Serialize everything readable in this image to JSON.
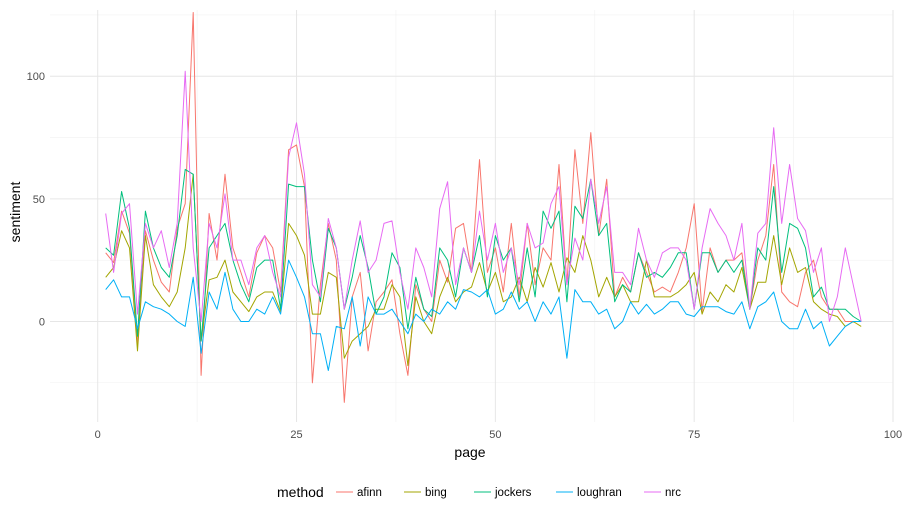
{
  "chart_data": {
    "type": "line",
    "title": "",
    "xlabel": "page",
    "ylabel": "sentiment",
    "xlim": [
      -6,
      100
    ],
    "ylim": [
      -41,
      127
    ],
    "x_ticks": [
      0,
      25,
      50,
      75,
      100
    ],
    "y_ticks": [
      0,
      50,
      100
    ],
    "grid": true,
    "legend": {
      "title": "method",
      "position": "bottom"
    },
    "series": [
      {
        "name": "afinn",
        "color": "#F8766D",
        "x": [
          1,
          2,
          3,
          4,
          5,
          6,
          7,
          8,
          9,
          10,
          11,
          12,
          13,
          14,
          15,
          16,
          17,
          18,
          19,
          20,
          21,
          22,
          23,
          24,
          25,
          26,
          27,
          28,
          29,
          30,
          31,
          32,
          33,
          34,
          35,
          36,
          37,
          38,
          39,
          40,
          41,
          42,
          43,
          44,
          45,
          46,
          47,
          48,
          49,
          50,
          51,
          52,
          53,
          54,
          55,
          56,
          57,
          58,
          59,
          60,
          61,
          62,
          63,
          64,
          65,
          66,
          67,
          68,
          69,
          70,
          71,
          72,
          73,
          74,
          75,
          76,
          77,
          78,
          79,
          80,
          81,
          82,
          83,
          84,
          85,
          86,
          87,
          88,
          89,
          90,
          91,
          92,
          93,
          94,
          95,
          96
        ],
        "values": [
          28,
          24,
          45,
          36,
          -9,
          37,
          25,
          16,
          12,
          38,
          48,
          126,
          -22,
          44,
          25,
          60,
          30,
          20,
          10,
          28,
          35,
          30,
          12,
          70,
          72,
          55,
          -25,
          15,
          40,
          25,
          -33,
          10,
          20,
          -12,
          8,
          12,
          17,
          -5,
          -22,
          15,
          5,
          0,
          25,
          16,
          38,
          40,
          20,
          66,
          20,
          30,
          12,
          40,
          10,
          40,
          15,
          30,
          25,
          64,
          15,
          70,
          40,
          77,
          35,
          58,
          10,
          18,
          12,
          28,
          20,
          12,
          14,
          12,
          20,
          30,
          48,
          4,
          30,
          20,
          25,
          25,
          28,
          5,
          25,
          35,
          64,
          12,
          8,
          6,
          20,
          25,
          10,
          5,
          5,
          0,
          0,
          0
        ]
      },
      {
        "name": "bing",
        "color": "#A3A500",
        "x": [
          1,
          2,
          3,
          4,
          5,
          6,
          7,
          8,
          9,
          10,
          11,
          12,
          13,
          14,
          15,
          16,
          17,
          18,
          19,
          20,
          21,
          22,
          23,
          24,
          25,
          26,
          27,
          28,
          29,
          30,
          31,
          32,
          33,
          34,
          35,
          36,
          37,
          38,
          39,
          40,
          41,
          42,
          43,
          44,
          45,
          46,
          47,
          48,
          49,
          50,
          51,
          52,
          53,
          54,
          55,
          56,
          57,
          58,
          59,
          60,
          61,
          62,
          63,
          64,
          65,
          66,
          67,
          68,
          69,
          70,
          71,
          72,
          73,
          74,
          75,
          76,
          77,
          78,
          79,
          80,
          81,
          82,
          83,
          84,
          85,
          86,
          87,
          88,
          89,
          90,
          91,
          92,
          93,
          94,
          95,
          96
        ],
        "values": [
          18,
          22,
          37,
          30,
          -12,
          35,
          15,
          10,
          6,
          12,
          30,
          60,
          -8,
          17,
          18,
          25,
          12,
          8,
          4,
          10,
          12,
          12,
          4,
          40,
          35,
          27,
          3,
          3,
          20,
          18,
          -15,
          -8,
          -5,
          -2,
          5,
          5,
          15,
          10,
          -18,
          10,
          0,
          -5,
          10,
          18,
          8,
          12,
          14,
          24,
          12,
          20,
          8,
          10,
          18,
          8,
          22,
          14,
          24,
          12,
          26,
          20,
          35,
          25,
          10,
          18,
          10,
          15,
          8,
          8,
          25,
          10,
          10,
          10,
          12,
          15,
          20,
          3,
          12,
          8,
          15,
          12,
          22,
          5,
          16,
          16,
          35,
          15,
          30,
          20,
          22,
          8,
          5,
          3,
          2,
          -2,
          0,
          -2
        ]
      },
      {
        "name": "jockers",
        "color": "#00BF7D",
        "x": [
          1,
          2,
          3,
          4,
          5,
          6,
          7,
          8,
          9,
          10,
          11,
          12,
          13,
          14,
          15,
          16,
          17,
          18,
          19,
          20,
          21,
          22,
          23,
          24,
          25,
          26,
          27,
          28,
          29,
          30,
          31,
          32,
          33,
          34,
          35,
          36,
          37,
          38,
          39,
          40,
          41,
          42,
          43,
          44,
          45,
          46,
          47,
          48,
          49,
          50,
          51,
          52,
          53,
          54,
          55,
          56,
          57,
          58,
          59,
          60,
          61,
          62,
          63,
          64,
          65,
          66,
          67,
          68,
          69,
          70,
          71,
          72,
          73,
          74,
          75,
          76,
          77,
          78,
          79,
          80,
          81,
          82,
          83,
          84,
          85,
          86,
          87,
          88,
          89,
          90,
          91,
          92,
          93,
          94,
          95,
          96
        ],
        "values": [
          30,
          27,
          53,
          38,
          -6,
          45,
          30,
          22,
          18,
          35,
          62,
          60,
          -8,
          30,
          35,
          40,
          25,
          15,
          8,
          22,
          25,
          25,
          5,
          56,
          55,
          55,
          25,
          8,
          38,
          30,
          5,
          18,
          35,
          22,
          3,
          10,
          28,
          22,
          -3,
          18,
          5,
          2,
          30,
          25,
          10,
          30,
          20,
          35,
          10,
          35,
          25,
          30,
          8,
          30,
          10,
          45,
          38,
          45,
          8,
          47,
          42,
          58,
          35,
          40,
          8,
          15,
          12,
          28,
          18,
          20,
          18,
          22,
          28,
          28,
          5,
          28,
          28,
          20,
          25,
          20,
          25,
          5,
          30,
          25,
          55,
          20,
          40,
          38,
          30,
          10,
          14,
          5,
          5,
          5,
          2,
          0
        ]
      },
      {
        "name": "loughran",
        "color": "#00B0F6",
        "x": [
          1,
          2,
          3,
          4,
          5,
          6,
          7,
          8,
          9,
          10,
          11,
          12,
          13,
          14,
          15,
          16,
          17,
          18,
          19,
          20,
          21,
          22,
          23,
          24,
          25,
          26,
          27,
          28,
          29,
          30,
          31,
          32,
          33,
          34,
          35,
          36,
          37,
          38,
          39,
          40,
          41,
          42,
          43,
          44,
          45,
          46,
          47,
          48,
          49,
          50,
          51,
          52,
          53,
          54,
          55,
          56,
          57,
          58,
          59,
          60,
          61,
          62,
          63,
          64,
          65,
          66,
          67,
          68,
          69,
          70,
          71,
          72,
          73,
          74,
          75,
          76,
          77,
          78,
          79,
          80,
          81,
          82,
          83,
          84,
          85,
          86,
          87,
          88,
          89,
          90,
          91,
          92,
          93,
          94,
          95,
          96
        ],
        "values": [
          13,
          17,
          10,
          10,
          -3,
          8,
          6,
          5,
          3,
          0,
          -2,
          18,
          -13,
          12,
          5,
          20,
          5,
          0,
          0,
          5,
          3,
          10,
          3,
          25,
          18,
          10,
          -5,
          -5,
          -20,
          -2,
          -3,
          10,
          -10,
          10,
          3,
          3,
          5,
          0,
          -5,
          3,
          0,
          5,
          3,
          8,
          5,
          13,
          12,
          10,
          13,
          3,
          5,
          12,
          5,
          8,
          0,
          8,
          3,
          10,
          -15,
          13,
          8,
          8,
          3,
          5,
          -3,
          0,
          8,
          3,
          7,
          3,
          5,
          8,
          8,
          3,
          2,
          6,
          6,
          6,
          4,
          3,
          8,
          -3,
          6,
          8,
          12,
          0,
          -3,
          -3,
          5,
          -3,
          0,
          -10,
          -6,
          -2,
          0,
          0
        ]
      },
      {
        "name": "nrc",
        "color": "#E76BF3",
        "x": [
          1,
          2,
          3,
          4,
          5,
          6,
          7,
          8,
          9,
          10,
          11,
          12,
          13,
          14,
          15,
          16,
          17,
          18,
          19,
          20,
          21,
          22,
          23,
          24,
          25,
          26,
          27,
          28,
          29,
          30,
          31,
          32,
          33,
          34,
          35,
          36,
          37,
          38,
          39,
          40,
          41,
          42,
          43,
          44,
          45,
          46,
          47,
          48,
          49,
          50,
          51,
          52,
          53,
          54,
          55,
          56,
          57,
          58,
          59,
          60,
          61,
          62,
          63,
          64,
          65,
          66,
          67,
          68,
          69,
          70,
          71,
          72,
          73,
          74,
          75,
          76,
          77,
          78,
          79,
          80,
          81,
          82,
          83,
          84,
          85,
          86,
          87,
          88,
          89,
          90,
          91,
          92,
          93,
          94,
          95,
          96
        ],
        "values": [
          44,
          20,
          44,
          48,
          3,
          40,
          30,
          37,
          22,
          40,
          102,
          30,
          0,
          40,
          30,
          52,
          25,
          25,
          15,
          30,
          35,
          20,
          10,
          67,
          81,
          60,
          15,
          10,
          42,
          30,
          5,
          25,
          41,
          20,
          25,
          40,
          41,
          20,
          5,
          30,
          22,
          10,
          46,
          57,
          15,
          30,
          20,
          45,
          25,
          40,
          20,
          30,
          15,
          40,
          30,
          32,
          48,
          55,
          15,
          34,
          25,
          58,
          40,
          55,
          20,
          20,
          15,
          38,
          25,
          18,
          28,
          30,
          30,
          25,
          5,
          30,
          46,
          40,
          35,
          25,
          40,
          5,
          36,
          40,
          79,
          40,
          64,
          42,
          37,
          20,
          30,
          0,
          10,
          30,
          15,
          0
        ]
      }
    ]
  }
}
